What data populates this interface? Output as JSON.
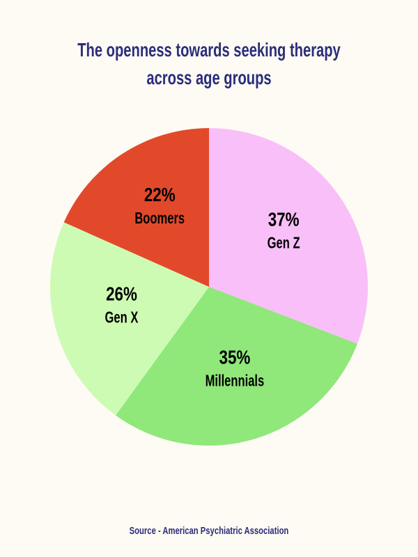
{
  "chart_data": {
    "type": "pie",
    "title": "The openness towards seeking therapy\nacross age groups",
    "categories": [
      "Gen Z",
      "Millennials",
      "Gen X",
      "Boomers"
    ],
    "values": [
      37,
      35,
      26,
      22
    ],
    "value_labels": [
      "37%",
      "35%",
      "26%",
      "22%"
    ],
    "colors": [
      "#f9bff9",
      "#90e77a",
      "#cdfbb3",
      "#e2492b"
    ],
    "source": "Source - American Psychiatric Association"
  }
}
